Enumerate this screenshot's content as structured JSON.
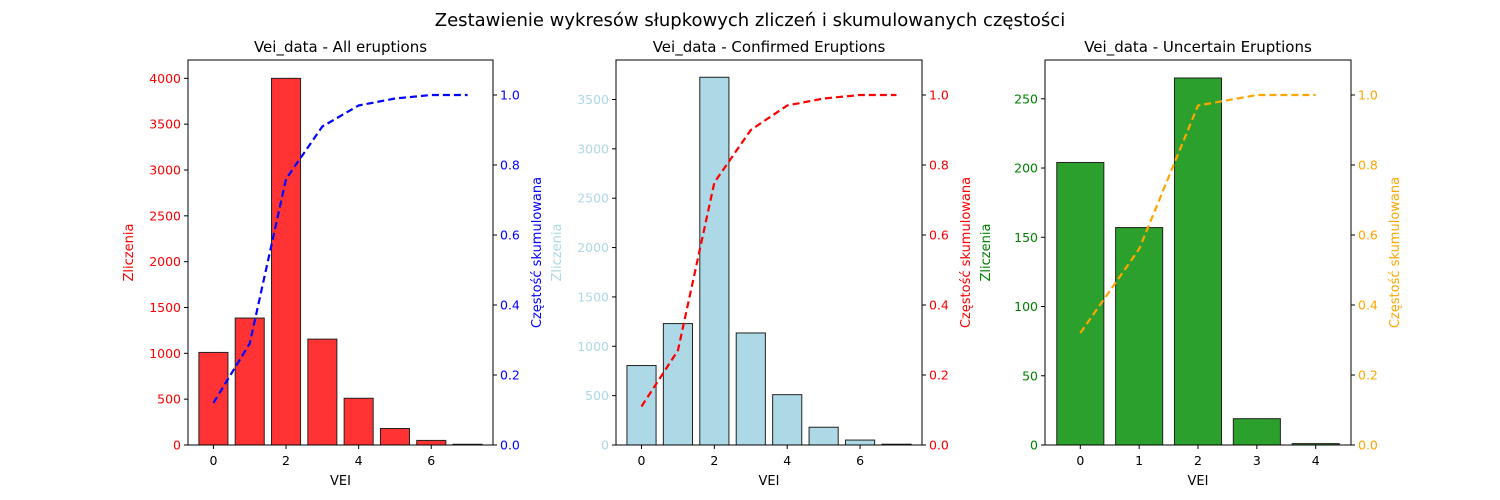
{
  "figure": {
    "suptitle": "Zestawienie wykresów słupkowych zliczeń i skumulowanych częstości"
  },
  "chart_data": [
    {
      "type": "bar",
      "title": "Vei_data - All eruptions",
      "xlabel": "VEI",
      "ylabel": "Zliczenia",
      "y2label": "Częstość skumulowana",
      "bar_color": "#ff3333",
      "line_color": "#0000ff",
      "left_tick_color": "#ff0000",
      "right_tick_color": "#0000ff",
      "categories": [
        0,
        1,
        2,
        3,
        4,
        5,
        6,
        7
      ],
      "values": [
        1010,
        1385,
        4000,
        1155,
        510,
        180,
        50,
        8
      ],
      "cumulative": [
        0.12,
        0.29,
        0.76,
        0.91,
        0.97,
        0.99,
        1.0,
        1.0
      ],
      "xlim": [
        -0.7,
        7.7
      ],
      "xticks": [
        0,
        2,
        4,
        6
      ],
      "ylim": [
        0,
        4200
      ],
      "yticks": [
        0,
        500,
        1000,
        1500,
        2000,
        2500,
        3000,
        3500,
        4000
      ],
      "y2lim": [
        0,
        1.1
      ],
      "y2ticks": [
        0.0,
        0.2,
        0.4,
        0.6,
        0.8,
        1.0
      ]
    },
    {
      "type": "bar",
      "title": "Vei_data - Confirmed Eruptions",
      "xlabel": "VEI",
      "ylabel": "Zliczenia",
      "y2label": "Częstość skumulowana",
      "bar_color": "#add8e6",
      "line_color": "#ff0000",
      "left_tick_color": "#add8e6",
      "right_tick_color": "#ff0000",
      "categories": [
        0,
        1,
        2,
        3,
        4,
        5,
        6,
        7
      ],
      "values": [
        805,
        1230,
        3725,
        1135,
        510,
        180,
        50,
        8
      ],
      "cumulative": [
        0.11,
        0.27,
        0.75,
        0.9,
        0.97,
        0.99,
        1.0,
        1.0
      ],
      "xlim": [
        -0.7,
        7.7
      ],
      "xticks": [
        0,
        2,
        4,
        6
      ],
      "ylim": [
        0,
        3900
      ],
      "yticks": [
        0,
        500,
        1000,
        1500,
        2000,
        2500,
        3000,
        3500
      ],
      "y2lim": [
        0,
        1.1
      ],
      "y2ticks": [
        0.0,
        0.2,
        0.4,
        0.6,
        0.8,
        1.0
      ]
    },
    {
      "type": "bar",
      "title": "Vei_data - Uncertain Eruptions",
      "xlabel": "VEI",
      "ylabel": "Zliczenia",
      "y2label": "Częstość skumulowana",
      "bar_color": "#2ca02c",
      "line_color": "#ffa500",
      "left_tick_color": "#008000",
      "right_tick_color": "#ffa500",
      "categories": [
        0,
        1,
        2,
        3,
        4
      ],
      "values": [
        204,
        157,
        265,
        19,
        1
      ],
      "cumulative": [
        0.32,
        0.56,
        0.97,
        1.0,
        1.0
      ],
      "xlim": [
        -0.6,
        4.6
      ],
      "xticks": [
        0,
        1,
        2,
        3,
        4
      ],
      "ylim": [
        0,
        278
      ],
      "yticks": [
        0,
        50,
        100,
        150,
        200,
        250
      ],
      "y2lim": [
        0,
        1.1
      ],
      "y2ticks": [
        0.0,
        0.2,
        0.4,
        0.6,
        0.8,
        1.0
      ]
    }
  ]
}
